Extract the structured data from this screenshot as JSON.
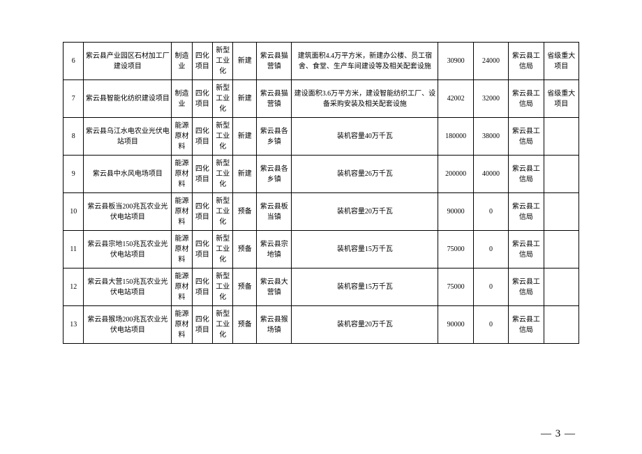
{
  "page_number": "— 3 —",
  "rows": [
    {
      "idx": "6",
      "name": "紫云县产业园区石材加工厂建设项目",
      "industry": "制造业",
      "category": "四化项目",
      "type": "新型工业化",
      "stage": "新建",
      "location": "紫云县猫营镇",
      "desc": "建筑面积4.4万平方米，新建办公楼、员工宿舍、食堂、生产车间建设等及相关配套设施",
      "n1": "30900",
      "n2": "24000",
      "dept": "紫云县工信局",
      "note": "省级重大项目"
    },
    {
      "idx": "7",
      "name": "紫云县智能化纺织建设项目",
      "industry": "制造业",
      "category": "四化项目",
      "type": "新型工业化",
      "stage": "新建",
      "location": "紫云县猫营镇",
      "desc": "建设面积3.6万平方米，建设智能纺织工厂、设备采购安装及相关配套设施",
      "n1": "42002",
      "n2": "32000",
      "dept": "紫云县工信局",
      "note": "省级重大项目"
    },
    {
      "idx": "8",
      "name": "紫云县乌江水电农业光伏电站项目",
      "industry": "能源原材料",
      "category": "四化项目",
      "type": "新型工业化",
      "stage": "新建",
      "location": "紫云县各乡镇",
      "desc": "装机容量40万千瓦",
      "n1": "180000",
      "n2": "38000",
      "dept": "紫云县工信局",
      "note": ""
    },
    {
      "idx": "9",
      "name": "紫云县中水风电场项目",
      "industry": "能源原材料",
      "category": "四化项目",
      "type": "新型工业化",
      "stage": "新建",
      "location": "紫云县各乡镇",
      "desc": "装机容量26万千瓦",
      "n1": "200000",
      "n2": "40000",
      "dept": "紫云县工信局",
      "note": ""
    },
    {
      "idx": "10",
      "name": "紫云县板当200兆瓦农业光伏电站项目",
      "industry": "能源原材料",
      "category": "四化项目",
      "type": "新型工业化",
      "stage": "预备",
      "location": "紫云县板当镇",
      "desc": "装机容量20万千瓦",
      "n1": "90000",
      "n2": "0",
      "dept": "紫云县工信局",
      "note": ""
    },
    {
      "idx": "11",
      "name": "紫云县宗地150兆瓦农业光伏电站项目",
      "industry": "能源原材料",
      "category": "四化项目",
      "type": "新型工业化",
      "stage": "预备",
      "location": "紫云县宗地镇",
      "desc": "装机容量15万千瓦",
      "n1": "75000",
      "n2": "0",
      "dept": "紫云县工信局",
      "note": ""
    },
    {
      "idx": "12",
      "name": "紫云县大营150兆瓦农业光伏电站项目",
      "industry": "能源原材料",
      "category": "四化项目",
      "type": "新型工业化",
      "stage": "预备",
      "location": "紫云县大营镇",
      "desc": "装机容量15万千瓦",
      "n1": "75000",
      "n2": "0",
      "dept": "紫云县工信局",
      "note": ""
    },
    {
      "idx": "13",
      "name": "紫云县猴场200兆瓦农业光伏电站项目",
      "industry": "能源原材料",
      "category": "四化项目",
      "type": "新型工业化",
      "stage": "预备",
      "location": "紫云县猴场镇",
      "desc": "装机容量20万千瓦",
      "n1": "90000",
      "n2": "0",
      "dept": "紫云县工信局",
      "note": ""
    }
  ]
}
